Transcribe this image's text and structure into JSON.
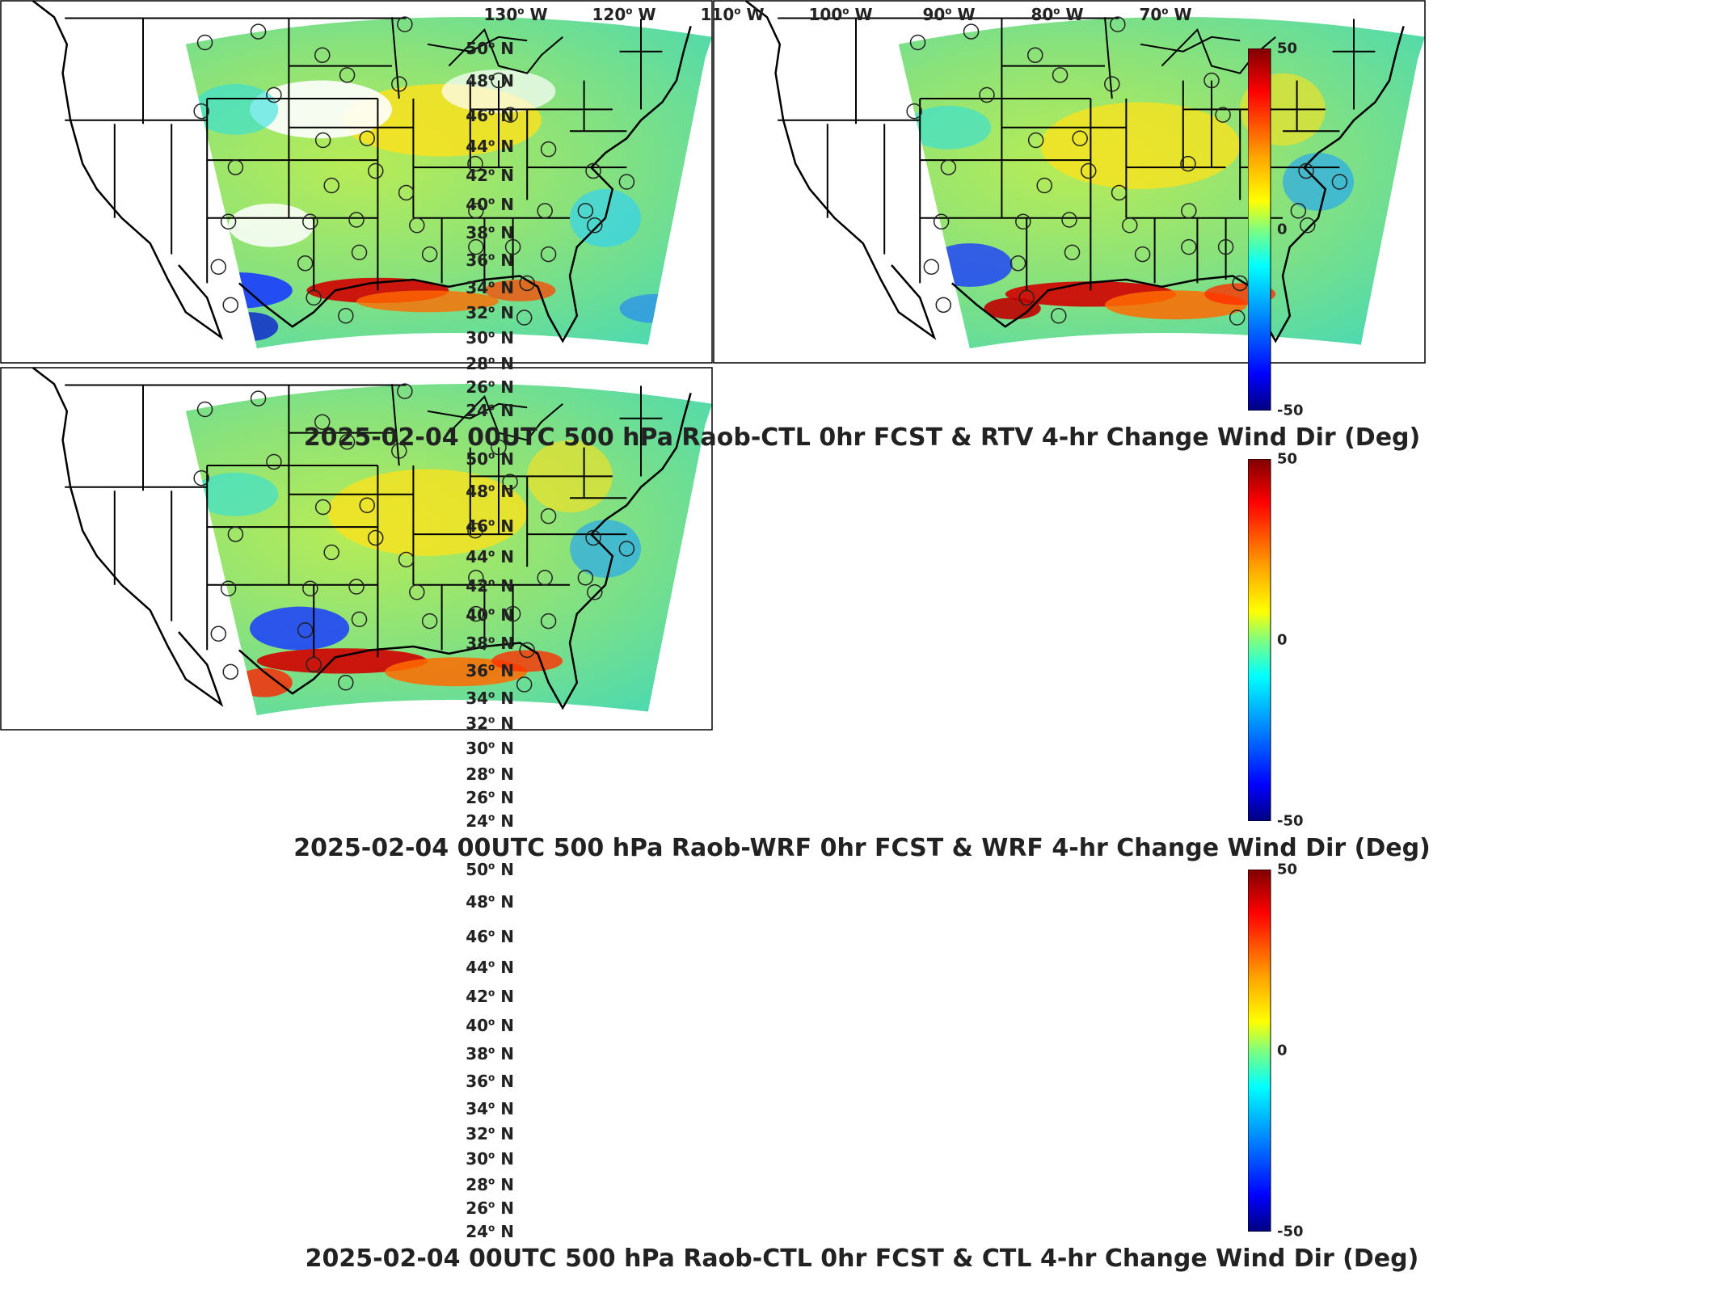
{
  "lon_labels": [
    {
      "value": "130",
      "dir": "W"
    },
    {
      "value": "120",
      "dir": "W"
    },
    {
      "value": "110",
      "dir": "W"
    },
    {
      "value": "100",
      "dir": "W"
    },
    {
      "value": "90",
      "dir": "W"
    },
    {
      "value": "80",
      "dir": "W"
    },
    {
      "value": "70",
      "dir": "W"
    }
  ],
  "lat_labels": [
    {
      "value": "50",
      "dir": "N"
    },
    {
      "value": "48",
      "dir": "N"
    },
    {
      "value": "46",
      "dir": "N"
    },
    {
      "value": "44",
      "dir": "N"
    },
    {
      "value": "42",
      "dir": "N"
    },
    {
      "value": "40",
      "dir": "N"
    },
    {
      "value": "38",
      "dir": "N"
    },
    {
      "value": "36",
      "dir": "N"
    },
    {
      "value": "34",
      "dir": "N"
    },
    {
      "value": "32",
      "dir": "N"
    },
    {
      "value": "30",
      "dir": "N"
    },
    {
      "value": "28",
      "dir": "N"
    },
    {
      "value": "26",
      "dir": "N"
    },
    {
      "value": "24",
      "dir": "N"
    }
  ],
  "colorbar": {
    "max": "50",
    "mid": "0",
    "min": "-50"
  },
  "panels": [
    {
      "caption": "2025-02-04 00UTC 500 hPa Raob-CTL 0hr FCST & RTV 4-hr Change Wind Dir (Deg)"
    },
    {
      "caption": "2025-02-04 00UTC 500 hPa Raob-WRF 0hr FCST & WRF 4-hr Change Wind Dir (Deg)"
    },
    {
      "caption": "2025-02-04 00UTC 500 hPa Raob-CTL 0hr FCST & CTL 4-hr Change Wind Dir (Deg)"
    }
  ],
  "colors": {
    "field_base": "#7fe07a",
    "positive_strong": "#cc0000",
    "negative_strong": "#0a2fd0",
    "neutral": "#4fd6a8"
  }
}
